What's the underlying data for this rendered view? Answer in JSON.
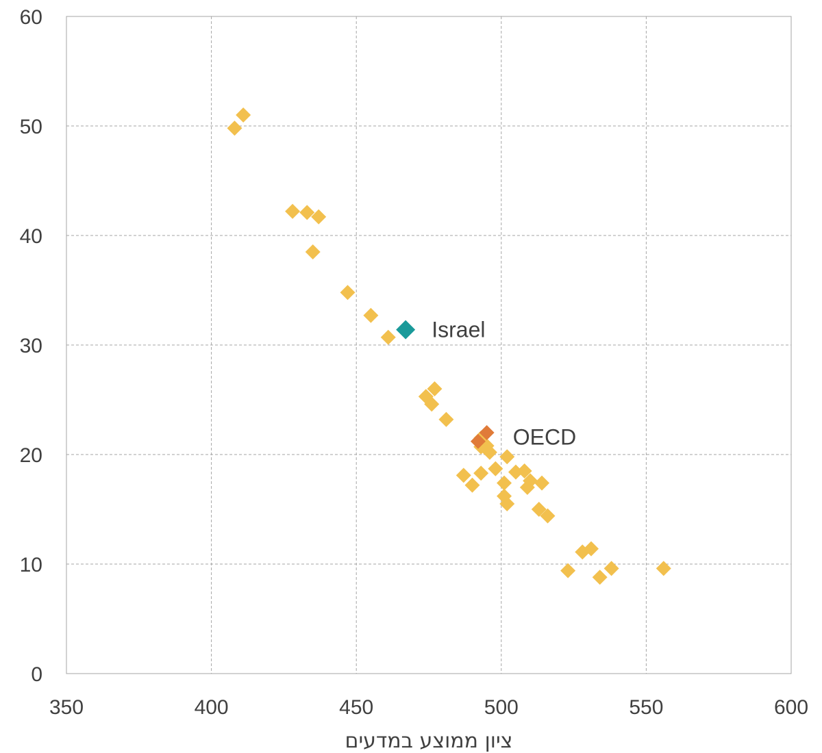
{
  "chart_data": {
    "type": "scatter",
    "title": "",
    "xlabel": "ציון ממוצע במדעים",
    "ylabel": "",
    "xlim": [
      350,
      600
    ],
    "ylim": [
      0,
      60
    ],
    "xticks": [
      350,
      400,
      450,
      500,
      550,
      600
    ],
    "yticks": [
      0,
      10,
      20,
      30,
      40,
      50,
      60
    ],
    "grid": true,
    "legend": "none",
    "marker": "diamond",
    "series": [
      {
        "name": "",
        "color": "#f2c04e",
        "points": [
          {
            "x": 408,
            "y": 49.8
          },
          {
            "x": 411,
            "y": 51.0
          },
          {
            "x": 428,
            "y": 42.2
          },
          {
            "x": 433,
            "y": 42.1
          },
          {
            "x": 437,
            "y": 41.7
          },
          {
            "x": 435,
            "y": 38.5
          },
          {
            "x": 447,
            "y": 34.8
          },
          {
            "x": 455,
            "y": 32.7
          },
          {
            "x": 461,
            "y": 30.7
          },
          {
            "x": 474,
            "y": 25.3
          },
          {
            "x": 477,
            "y": 26.0
          },
          {
            "x": 476,
            "y": 24.6
          },
          {
            "x": 481,
            "y": 23.2
          },
          {
            "x": 493,
            "y": 21.5
          },
          {
            "x": 493,
            "y": 20.7
          },
          {
            "x": 495,
            "y": 20.8
          },
          {
            "x": 496,
            "y": 20.2
          },
          {
            "x": 502,
            "y": 19.8
          },
          {
            "x": 487,
            "y": 18.1
          },
          {
            "x": 490,
            "y": 17.2
          },
          {
            "x": 493,
            "y": 18.3
          },
          {
            "x": 498,
            "y": 18.7
          },
          {
            "x": 505,
            "y": 18.4
          },
          {
            "x": 508,
            "y": 18.5
          },
          {
            "x": 501,
            "y": 17.4
          },
          {
            "x": 509,
            "y": 17.0
          },
          {
            "x": 510,
            "y": 17.6
          },
          {
            "x": 514,
            "y": 17.4
          },
          {
            "x": 501,
            "y": 16.2
          },
          {
            "x": 502,
            "y": 15.5
          },
          {
            "x": 513,
            "y": 15.0
          },
          {
            "x": 516,
            "y": 14.4
          },
          {
            "x": 523,
            "y": 9.4
          },
          {
            "x": 528,
            "y": 11.1
          },
          {
            "x": 531,
            "y": 11.4
          },
          {
            "x": 534,
            "y": 8.8
          },
          {
            "x": 538,
            "y": 9.6
          },
          {
            "x": 556,
            "y": 9.6
          }
        ]
      },
      {
        "name": "OECD",
        "color": "#e07b39",
        "points": [
          {
            "x": 495,
            "y": 22.0
          },
          {
            "x": 492,
            "y": 21.2
          }
        ]
      },
      {
        "name": "Israel",
        "color": "#1a9a9a",
        "points": [
          {
            "x": 467,
            "y": 31.4
          }
        ]
      }
    ],
    "annotations": [
      {
        "text": "Israel",
        "x": 476,
        "y": 31.4
      },
      {
        "text": "OECD",
        "x": 504,
        "y": 21.6
      }
    ]
  }
}
